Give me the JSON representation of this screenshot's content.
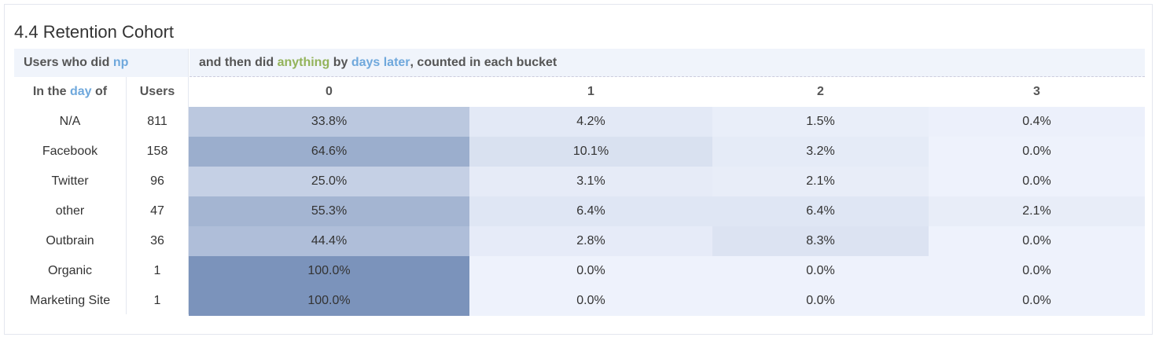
{
  "title": "4.4 Retention Cohort",
  "header": {
    "left": {
      "prefix": "Users who did",
      "event": "np"
    },
    "right": {
      "p1": "and then did",
      "event": "anything",
      "p2": "by",
      "unit": "days later",
      "p3": ", counted in each bucket"
    }
  },
  "columns": {
    "segment": {
      "p1": "In the",
      "unit": "day",
      "p2": "of"
    },
    "users": "Users",
    "buckets": [
      "0",
      "1",
      "2",
      "3"
    ]
  },
  "rows": [
    {
      "segment": "N/A",
      "users": 811,
      "cells": [
        "33.8%",
        "4.2%",
        "1.5%",
        "0.4%"
      ]
    },
    {
      "segment": "Facebook",
      "users": 158,
      "cells": [
        "64.6%",
        "10.1%",
        "3.2%",
        "0.0%"
      ]
    },
    {
      "segment": "Twitter",
      "users": 96,
      "cells": [
        "25.0%",
        "3.1%",
        "2.1%",
        "0.0%"
      ]
    },
    {
      "segment": "other",
      "users": 47,
      "cells": [
        "55.3%",
        "6.4%",
        "6.4%",
        "2.1%"
      ]
    },
    {
      "segment": "Outbrain",
      "users": 36,
      "cells": [
        "44.4%",
        "2.8%",
        "8.3%",
        "0.0%"
      ]
    },
    {
      "segment": "Organic",
      "users": 1,
      "cells": [
        "100.0%",
        "0.0%",
        "0.0%",
        "0.0%"
      ]
    },
    {
      "segment": "Marketing Site",
      "users": 1,
      "cells": [
        "100.0%",
        "0.0%",
        "0.0%",
        "0.0%"
      ]
    }
  ]
}
